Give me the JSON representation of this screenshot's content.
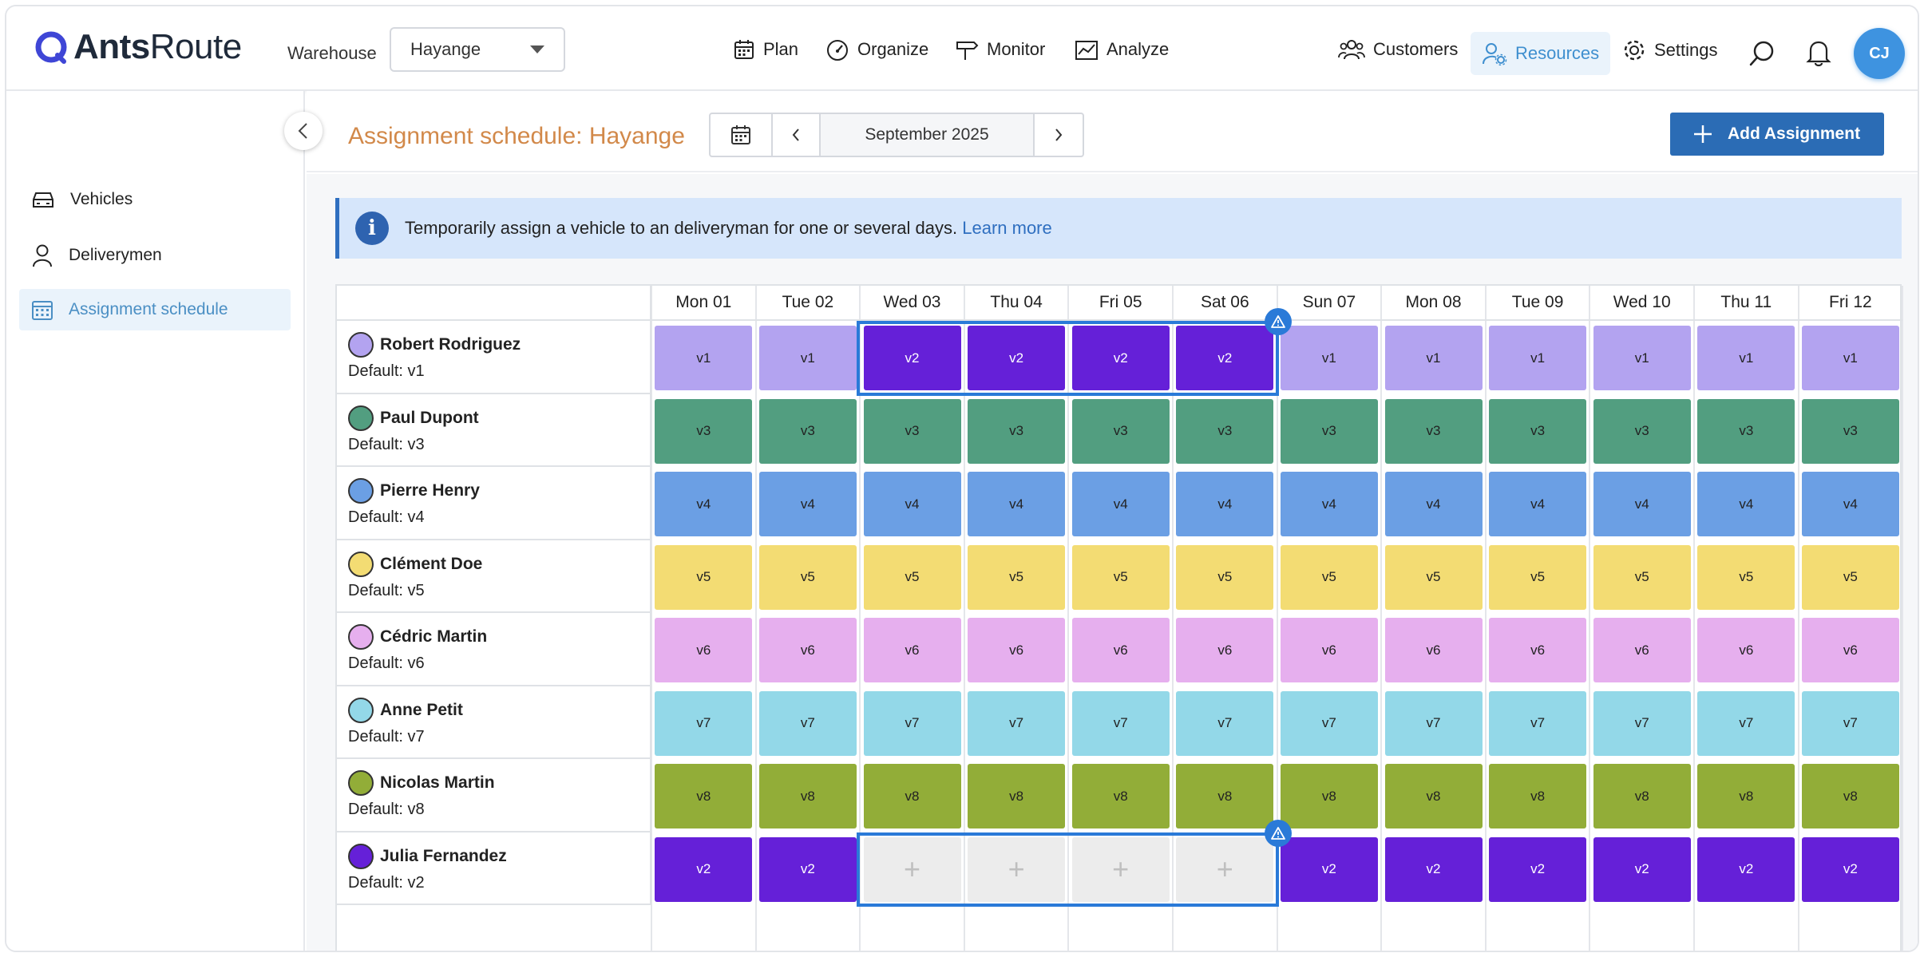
{
  "brand": {
    "name_bold": "Ants",
    "name_light": "Route"
  },
  "header": {
    "warehouse_label": "Warehouse",
    "warehouse_value": "Hayange",
    "nav": [
      {
        "id": "plan",
        "label": "Plan",
        "icon": "calendar-icon"
      },
      {
        "id": "organize",
        "label": "Organize",
        "icon": "gauge-icon"
      },
      {
        "id": "monitor",
        "label": "Monitor",
        "icon": "signpost-icon"
      },
      {
        "id": "analyze",
        "label": "Analyze",
        "icon": "chart-icon"
      }
    ],
    "right_nav": [
      {
        "id": "customers",
        "label": "Customers",
        "icon": "users-icon"
      },
      {
        "id": "resources",
        "label": "Resources",
        "icon": "user-gear-icon",
        "active": true
      },
      {
        "id": "settings",
        "label": "Settings",
        "icon": "gear-icon"
      }
    ],
    "avatar_initials": "CJ"
  },
  "sidebar": {
    "items": [
      {
        "label": "Vehicles",
        "icon": "car-icon"
      },
      {
        "label": "Deliverymen",
        "icon": "person-icon"
      },
      {
        "label": "Assignment schedule",
        "icon": "calendar-grid-icon",
        "active": true
      }
    ]
  },
  "toolbar": {
    "title": "Assignment schedule: Hayange",
    "month": "September 2025",
    "add_button": "Add Assignment"
  },
  "banner": {
    "text": "Temporarily assign a vehicle to an deliveryman for one or several days.",
    "link": "Learn more"
  },
  "colors": {
    "v1": "#b3a3f0",
    "v2": "#6520d8",
    "v3": "#529e80",
    "v4": "#6b9fe4",
    "v5": "#f3dc73",
    "v6": "#e6afee",
    "v7": "#93d8e8",
    "v8": "#92ad38"
  },
  "days": [
    "Mon 01",
    "Tue 02",
    "Wed 03",
    "Thu 04",
    "Fri 05",
    "Sat 06",
    "Sun 07",
    "Mon 08",
    "Tue 09",
    "Wed 10",
    "Thu 11",
    "Fri 12"
  ],
  "rows": [
    {
      "name": "Robert Rodriguez",
      "default_label": "Default: v1",
      "color": "v1",
      "cells": [
        "v1",
        "v1",
        "v2",
        "v2",
        "v2",
        "v2",
        "v1",
        "v1",
        "v1",
        "v1",
        "v1",
        "v1"
      ]
    },
    {
      "name": "Paul Dupont",
      "default_label": "Default: v3",
      "color": "v3",
      "cells": [
        "v3",
        "v3",
        "v3",
        "v3",
        "v3",
        "v3",
        "v3",
        "v3",
        "v3",
        "v3",
        "v3",
        "v3"
      ]
    },
    {
      "name": "Pierre Henry",
      "default_label": "Default: v4",
      "color": "v4",
      "cells": [
        "v4",
        "v4",
        "v4",
        "v4",
        "v4",
        "v4",
        "v4",
        "v4",
        "v4",
        "v4",
        "v4",
        "v4"
      ]
    },
    {
      "name": "Clément Doe",
      "default_label": "Default: v5",
      "color": "v5",
      "cells": [
        "v5",
        "v5",
        "v5",
        "v5",
        "v5",
        "v5",
        "v5",
        "v5",
        "v5",
        "v5",
        "v5",
        "v5"
      ]
    },
    {
      "name": "Cédric Martin",
      "default_label": "Default: v6",
      "color": "v6",
      "cells": [
        "v6",
        "v6",
        "v6",
        "v6",
        "v6",
        "v6",
        "v6",
        "v6",
        "v6",
        "v6",
        "v6",
        "v6"
      ]
    },
    {
      "name": "Anne Petit",
      "default_label": "Default: v7",
      "color": "v7",
      "cells": [
        "v7",
        "v7",
        "v7",
        "v7",
        "v7",
        "v7",
        "v7",
        "v7",
        "v7",
        "v7",
        "v7",
        "v7"
      ]
    },
    {
      "name": "Nicolas Martin",
      "default_label": "Default: v8",
      "color": "v8",
      "cells": [
        "v8",
        "v8",
        "v8",
        "v8",
        "v8",
        "v8",
        "v8",
        "v8",
        "v8",
        "v8",
        "v8",
        "v8"
      ]
    },
    {
      "name": "Julia Fernandez",
      "default_label": "Default: v2",
      "color": "v2",
      "cells": [
        "v2",
        "v2",
        "+",
        "+",
        "+",
        "+",
        "v2",
        "v2",
        "v2",
        "v2",
        "v2",
        "v2"
      ]
    }
  ],
  "highlights": [
    {
      "row": 0,
      "from_day": 2,
      "to_day": 5,
      "badge": "warning-icon"
    },
    {
      "row": 7,
      "from_day": 2,
      "to_day": 5,
      "badge": "warning-icon"
    }
  ]
}
